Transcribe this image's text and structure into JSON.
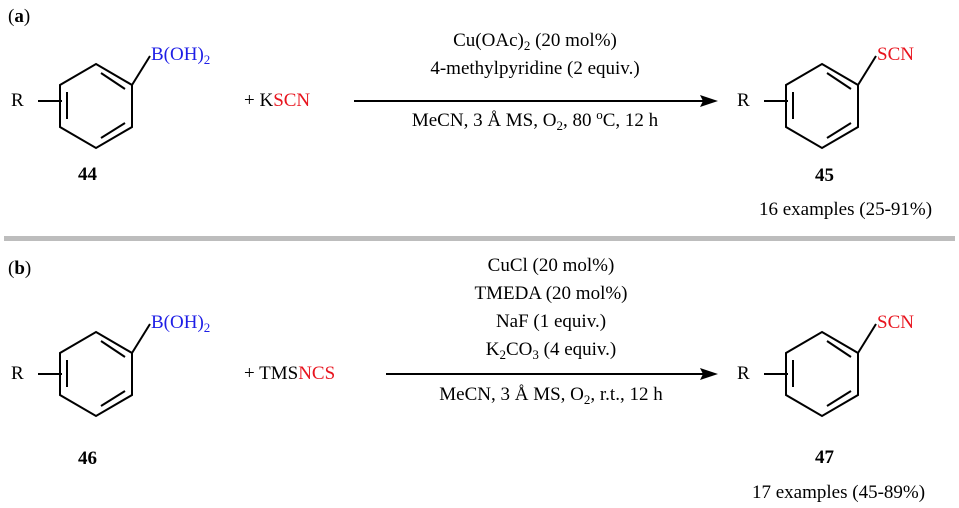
{
  "panel_a": {
    "label_open": "(",
    "label_letter": "a",
    "label_close": ")",
    "reactant_r": "R",
    "reactant_group_main": "B(OH)",
    "reactant_group_sub": "2",
    "reactant_number": "44",
    "plus_text": "+ K",
    "reagent_colored": "SCN",
    "reagent_color": "#e8141e",
    "cond_above_1_main": "Cu(OAc)",
    "cond_above_1_sub": "2",
    "cond_above_1_rest": " (20 mol%)",
    "cond_above_2": "4-methylpyridine (2 equiv.)",
    "cond_below_pre": "MeCN, 3 Å MS, O",
    "cond_below_sub": "2",
    "cond_below_mid": ", 80 ",
    "cond_below_sup": "o",
    "cond_below_post": "C, 12 h",
    "product_r": "R",
    "product_group": "SCN",
    "product_number": "45",
    "examples": "16 examples (25-91%)"
  },
  "panel_b": {
    "label_open": "(",
    "label_letter": "b",
    "label_close": ")",
    "reactant_r": "R",
    "reactant_group_main": "B(OH)",
    "reactant_group_sub": "2",
    "reactant_number": "46",
    "plus_text": "+ TMS",
    "reagent_colored": "NCS",
    "reagent_color": "#e8141e",
    "cond_above_1": "CuCl (20 mol%)",
    "cond_above_2": "TMEDA (20 mol%)",
    "cond_above_3": "NaF (1 equiv.)",
    "cond_above_4_k": "K",
    "cond_above_4_sub1": "2",
    "cond_above_4_co": "CO",
    "cond_above_4_sub2": "3",
    "cond_above_4_rest": " (4 equiv.)",
    "cond_below_pre": "MeCN, 3 Å MS, O",
    "cond_below_sub": "2",
    "cond_below_post": ", r.t., 12 h",
    "product_r": "R",
    "product_group": "SCN",
    "product_number": "47",
    "examples": "17 examples (45-89%)"
  },
  "colors": {
    "boron": "#1e1ee6",
    "thiocyanate": "#e8141e",
    "divider": "#bdbdbd"
  }
}
